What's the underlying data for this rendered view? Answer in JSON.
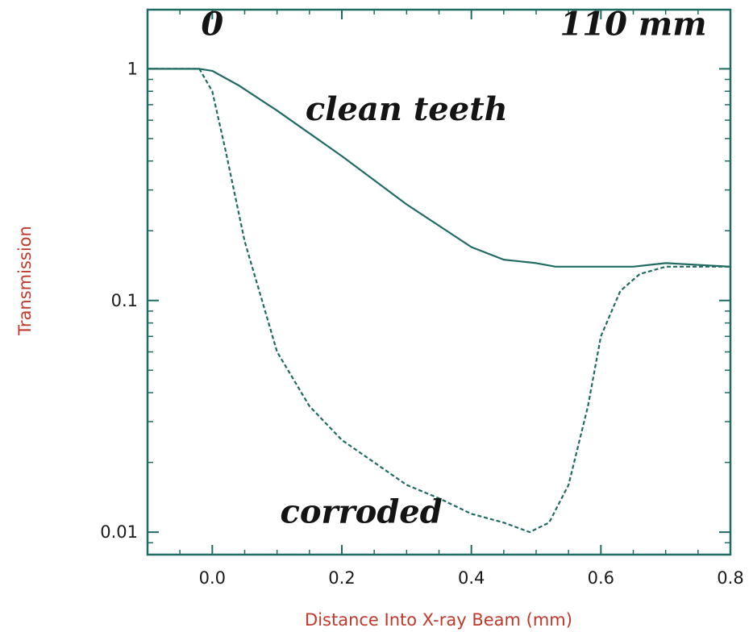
{
  "chart_data": {
    "type": "line",
    "xlabel": "Distance Into X-ray Beam (mm)",
    "ylabel": "Transmission",
    "xlim": [
      -0.1,
      0.8
    ],
    "ylim": [
      0.008,
      1.8
    ],
    "yscale": "log",
    "x_ticks": [
      0.0,
      0.2,
      0.4,
      0.6,
      0.8
    ],
    "x_tick_labels": [
      "0.0",
      "0.2",
      "0.4",
      "0.6",
      "0.8"
    ],
    "y_ticks": [
      1,
      0.1,
      0.01
    ],
    "y_tick_labels": [
      "1",
      "0.1",
      "0.01"
    ],
    "grid": false,
    "series": [
      {
        "name": "clean teeth",
        "style": "solid",
        "color": "#1f6b62",
        "x": [
          -0.1,
          -0.02,
          0.0,
          0.04,
          0.1,
          0.2,
          0.3,
          0.4,
          0.45,
          0.5,
          0.53,
          0.6,
          0.65,
          0.7,
          0.8
        ],
        "y": [
          1.0,
          1.0,
          0.98,
          0.85,
          0.66,
          0.42,
          0.26,
          0.17,
          0.15,
          0.145,
          0.14,
          0.14,
          0.14,
          0.145,
          0.14
        ]
      },
      {
        "name": "corroded",
        "style": "dashed",
        "color": "#1f6b62",
        "x": [
          -0.1,
          -0.02,
          0.0,
          0.02,
          0.05,
          0.1,
          0.15,
          0.2,
          0.3,
          0.35,
          0.4,
          0.45,
          0.49,
          0.52,
          0.55,
          0.58,
          0.6,
          0.63,
          0.66,
          0.7,
          0.8
        ],
        "y": [
          1.0,
          1.0,
          0.8,
          0.45,
          0.18,
          0.06,
          0.035,
          0.025,
          0.016,
          0.014,
          0.012,
          0.011,
          0.01,
          0.011,
          0.016,
          0.035,
          0.07,
          0.11,
          0.13,
          0.14,
          0.14
        ]
      }
    ],
    "annotations": [
      {
        "text": "0",
        "at": [
          0.0,
          1.4
        ]
      },
      {
        "text": "110 mm",
        "at": [
          0.65,
          1.4
        ]
      },
      {
        "text": "clean teeth",
        "at": [
          0.3,
          0.6
        ]
      },
      {
        "text": "corroded",
        "at": [
          0.23,
          0.011
        ]
      }
    ]
  },
  "colors": {
    "frame": "#1f6b62",
    "curve": "#1f6b62",
    "axis_title": "#c0392b",
    "text": "#141414"
  }
}
